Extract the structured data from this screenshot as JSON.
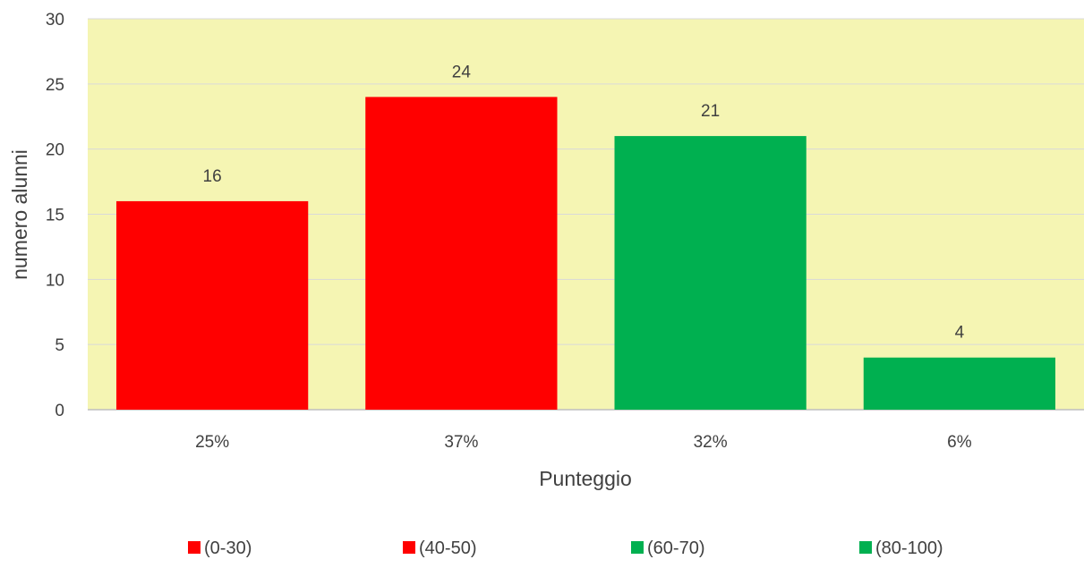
{
  "chart_data": {
    "type": "bar",
    "title": "",
    "xlabel": "Punteggio",
    "ylabel": "numero alunni",
    "ylim": [
      0,
      30
    ],
    "yticks": [
      0,
      5,
      10,
      15,
      20,
      25,
      30
    ],
    "categories": [
      "25%",
      "37%",
      "32%",
      "6%"
    ],
    "values": [
      16,
      24,
      21,
      4
    ],
    "data_labels": [
      "16",
      "24",
      "21",
      "4"
    ],
    "bar_colors": [
      "#ff0000",
      "#ff0000",
      "#00b050",
      "#00b050"
    ],
    "plot_background": "#f5f5b3",
    "grid": true,
    "legend": {
      "position": "bottom",
      "items": [
        {
          "label": "(0-30)",
          "color": "#ff0000"
        },
        {
          "label": "(40-50)",
          "color": "#ff0000"
        },
        {
          "label": "(60-70)",
          "color": "#00b050"
        },
        {
          "label": "(80-100)",
          "color": "#00b050"
        }
      ]
    }
  }
}
